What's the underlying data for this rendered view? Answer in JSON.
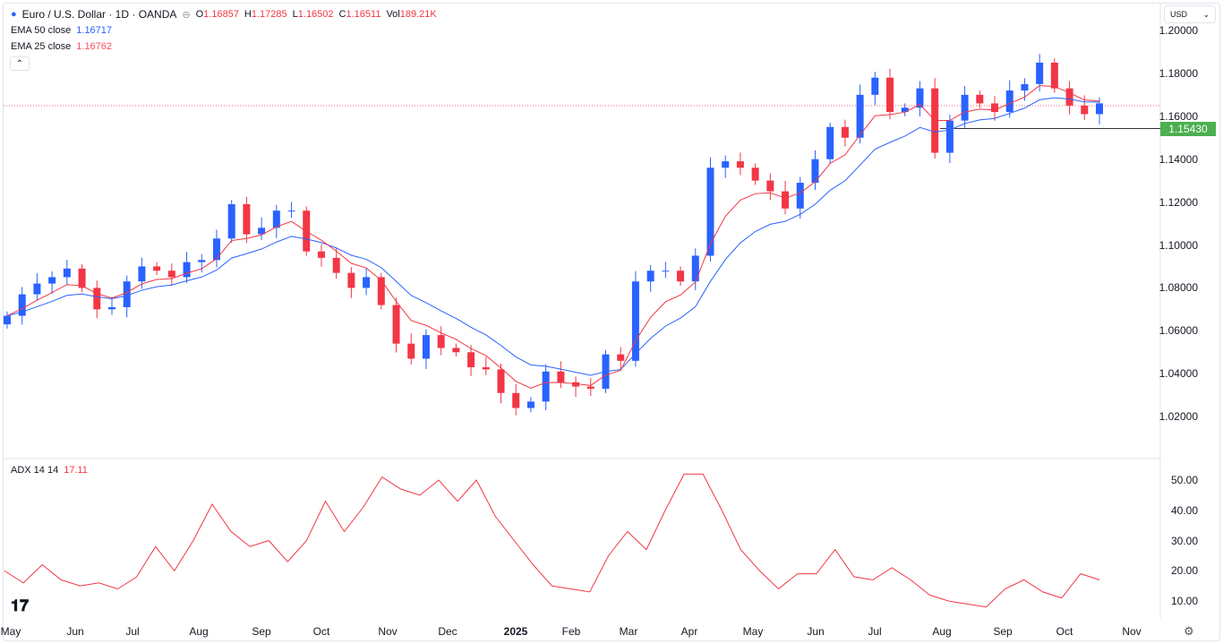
{
  "header": {
    "title": "Euro / U.S. Dollar · 1D · OANDA",
    "o_label": "O",
    "o": "1.16857",
    "h_label": "H",
    "h": "1.17285",
    "l_label": "L",
    "l": "1.16502",
    "c_label": "C",
    "c": "1.16511",
    "vol_label": "Vol",
    "vol": "189.21K"
  },
  "ema50": {
    "label": "EMA 50 close",
    "value": "1.16717",
    "color": "#2962ff"
  },
  "ema25": {
    "label": "EMA 25 close",
    "value": "1.16762",
    "color": "#f23645"
  },
  "currency": "USD",
  "last_price_label": "1.15430",
  "adx": {
    "label": "ADX 14 14",
    "value": "17.11"
  },
  "chart_data": [
    {
      "type": "candlestick",
      "title": "Euro / U.S. Dollar · 1D · OANDA",
      "ylim": [
        1.01,
        1.21
      ],
      "y_ticks": [
        "1.20000",
        "1.18000",
        "1.16000",
        "1.14000",
        "1.12000",
        "1.10000",
        "1.08000",
        "1.06000",
        "1.04000",
        "1.02000"
      ],
      "x_ticks": [
        "May",
        "Jun",
        "Jul",
        "Aug",
        "Sep",
        "Oct",
        "Nov",
        "Dec",
        "2025",
        "Feb",
        "Mar",
        "Apr",
        "May",
        "Jun",
        "Jul",
        "Aug",
        "Sep",
        "Oct",
        "Nov"
      ],
      "horizontal_line": 1.1543,
      "weekly_closes": [
        1.067,
        1.077,
        1.082,
        1.085,
        1.089,
        1.08,
        1.07,
        1.071,
        1.083,
        1.09,
        1.088,
        1.085,
        1.092,
        1.093,
        1.103,
        1.119,
        1.105,
        1.108,
        1.116,
        1.116,
        1.097,
        1.094,
        1.087,
        1.08,
        1.085,
        1.072,
        1.054,
        1.047,
        1.058,
        1.052,
        1.05,
        1.043,
        1.042,
        1.031,
        1.024,
        1.027,
        1.041,
        1.036,
        1.034,
        1.033,
        1.049,
        1.046,
        1.083,
        1.088,
        1.088,
        1.083,
        1.095,
        1.136,
        1.139,
        1.136,
        1.13,
        1.125,
        1.117,
        1.129,
        1.14,
        1.155,
        1.15,
        1.17,
        1.178,
        1.162,
        1.164,
        1.173,
        1.143,
        1.158,
        1.17,
        1.166,
        1.162,
        1.172,
        1.175,
        1.185,
        1.173,
        1.165,
        1.161,
        1.166
      ]
    },
    {
      "type": "line",
      "title": "ADX 14 14",
      "ylim": [
        5,
        55
      ],
      "y_ticks": [
        "50.00",
        "40.00",
        "30.00",
        "20.00",
        "10.00"
      ],
      "values": [
        20,
        16,
        22,
        17,
        15,
        16,
        14,
        18,
        28,
        20,
        30,
        42,
        33,
        28,
        30,
        23,
        30,
        43,
        33,
        41,
        51,
        47,
        45,
        50,
        43,
        50,
        38,
        30,
        22,
        15,
        14,
        13,
        25,
        33,
        27,
        40,
        52,
        52,
        40,
        27,
        20,
        14,
        19,
        19,
        27,
        18,
        17,
        21,
        17,
        12,
        10,
        9,
        8,
        14,
        17,
        13,
        11,
        19,
        17
      ]
    }
  ]
}
